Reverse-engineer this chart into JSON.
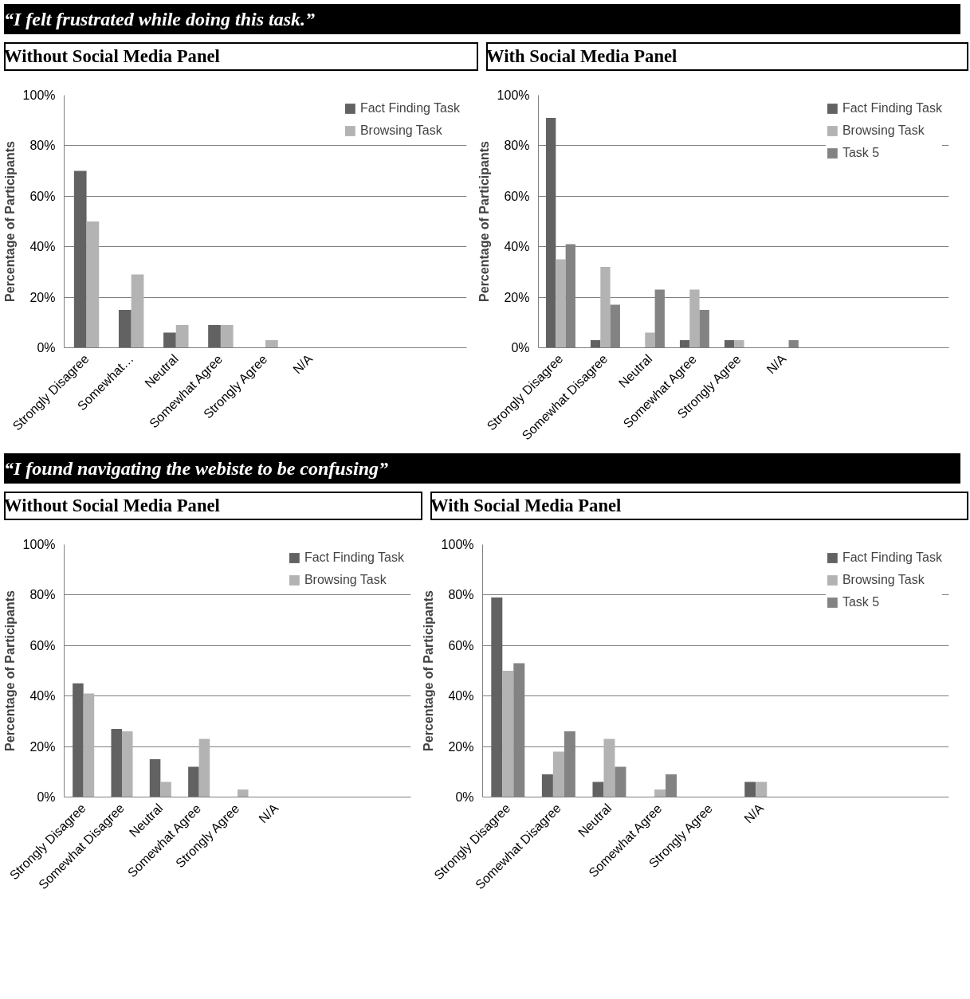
{
  "chart_data": [
    {
      "type": "bar",
      "title": "“I felt frustrated while doing this task.”",
      "subtitle": "Without Social Media Panel",
      "ylabel": "Percentage of Participants",
      "categories": [
        "Strongly Disagree",
        "Somewhat…",
        "Neutral",
        "Somewhat Agree",
        "Strongly Agree",
        "N/A"
      ],
      "series": [
        {
          "name": "Fact Finding Task",
          "color": "#626262",
          "values": [
            70,
            15,
            6,
            9,
            0,
            0
          ]
        },
        {
          "name": "Browsing Task",
          "color": "#b3b3b3",
          "values": [
            50,
            29,
            9,
            9,
            3,
            0
          ]
        }
      ],
      "ylim": [
        0,
        100
      ],
      "yticks": [
        {
          "value": 0,
          "label": "0%"
        },
        {
          "value": 20,
          "label": "20%"
        },
        {
          "value": 40,
          "label": "40%"
        },
        {
          "value": 60,
          "label": "60%"
        },
        {
          "value": 80,
          "label": "80%"
        },
        {
          "value": 100,
          "label": "100%"
        }
      ],
      "grid": "y",
      "legend": "top right"
    },
    {
      "type": "bar",
      "subtitle": "With Social Media Panel",
      "ylabel": "Percentage of Participants",
      "categories": [
        "Strongly Disagree",
        "Somewhat Disagree",
        "Neutral",
        "Somewhat Agree",
        "Strongly Agree",
        "N/A"
      ],
      "series": [
        {
          "name": "Fact Finding Task",
          "color": "#626262",
          "values": [
            91,
            3,
            0,
            3,
            3,
            0
          ]
        },
        {
          "name": "Browsing Task",
          "color": "#b3b3b3",
          "values": [
            35,
            32,
            6,
            23,
            3,
            0
          ]
        },
        {
          "name": "Task 5",
          "color": "#838383",
          "values": [
            41,
            17,
            23,
            15,
            0,
            3
          ]
        }
      ],
      "ylim": [
        0,
        100
      ],
      "yticks": [
        {
          "value": 0,
          "label": "0%"
        },
        {
          "value": 20,
          "label": "20%"
        },
        {
          "value": 40,
          "label": "40%"
        },
        {
          "value": 60,
          "label": "60%"
        },
        {
          "value": 80,
          "label": "80%"
        },
        {
          "value": 100,
          "label": "100%"
        }
      ],
      "grid": "y",
      "legend": "top right"
    },
    {
      "type": "bar",
      "title": "“I found navigating the webiste to be confusing”",
      "subtitle": "Without Social Media Panel",
      "ylabel": "Percentage of Participants",
      "categories": [
        "Strongly Disagree",
        "Somewhat Disagree",
        "Neutral",
        "Somewhat Agree",
        "Strongly Agree",
        "N/A"
      ],
      "series": [
        {
          "name": "Fact Finding Task",
          "color": "#626262",
          "values": [
            45,
            27,
            15,
            12,
            0,
            0
          ]
        },
        {
          "name": "Browsing Task",
          "color": "#b3b3b3",
          "values": [
            41,
            26,
            6,
            23,
            3,
            0
          ]
        }
      ],
      "ylim": [
        0,
        100
      ],
      "yticks": [
        {
          "value": 0,
          "label": "0%"
        },
        {
          "value": 20,
          "label": "20%"
        },
        {
          "value": 40,
          "label": "40%"
        },
        {
          "value": 60,
          "label": "60%"
        },
        {
          "value": 80,
          "label": "80%"
        },
        {
          "value": 100,
          "label": "100%"
        }
      ],
      "grid": "y",
      "legend": "top right"
    },
    {
      "type": "bar",
      "subtitle": "With Social Media Panel",
      "ylabel": "Percentage of Participants",
      "categories": [
        "Strongly Disagree",
        "Somewhat Disagree",
        "Neutral",
        "Somewhat Agree",
        "Strongly Agree",
        "N/A"
      ],
      "series": [
        {
          "name": "Fact Finding Task",
          "color": "#626262",
          "values": [
            79,
            9,
            6,
            0,
            0,
            6
          ]
        },
        {
          "name": "Browsing Task",
          "color": "#b3b3b3",
          "values": [
            50,
            18,
            23,
            3,
            0,
            6
          ]
        },
        {
          "name": "Task 5",
          "color": "#838383",
          "values": [
            53,
            26,
            12,
            9,
            0,
            0
          ]
        }
      ],
      "ylim": [
        0,
        100
      ],
      "yticks": [
        {
          "value": 0,
          "label": "0%"
        },
        {
          "value": 20,
          "label": "20%"
        },
        {
          "value": 40,
          "label": "40%"
        },
        {
          "value": 60,
          "label": "60%"
        },
        {
          "value": 80,
          "label": "80%"
        },
        {
          "value": 100,
          "label": "100%"
        }
      ],
      "grid": "y",
      "legend": "top right"
    }
  ]
}
